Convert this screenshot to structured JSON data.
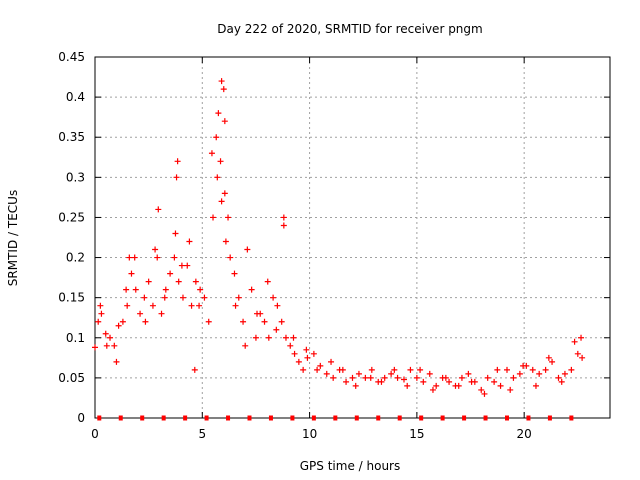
{
  "chart_data": {
    "type": "scatter",
    "title": "Day 222 of 2020, SRMTID for receiver pngm",
    "xlabel": "GPS time / hours",
    "ylabel": "SRMTID / TECUs",
    "xlim": [
      0,
      24
    ],
    "ylim": [
      0,
      0.45
    ],
    "x_ticks": [
      0,
      5,
      10,
      15,
      20
    ],
    "x_tick_labels": [
      "0",
      "5",
      "10",
      "15",
      "20"
    ],
    "y_ticks": [
      0,
      0.05,
      0.1,
      0.15,
      0.2,
      0.25,
      0.3,
      0.35,
      0.4,
      0.45
    ],
    "y_tick_labels": [
      "0",
      "0.05",
      "0.1",
      "0.15",
      "0.2",
      "0.25",
      "0.3",
      "0.35",
      "0.4",
      "0.45"
    ],
    "grid": true,
    "marker": "+",
    "color": "#ff0000",
    "x": [
      0.0,
      0.15,
      0.3,
      0.5,
      0.7,
      0.9,
      1.1,
      1.3,
      1.5,
      1.7,
      1.9,
      2.1,
      2.3,
      2.5,
      2.7,
      2.9,
      3.1,
      3.3,
      3.5,
      3.7,
      3.9,
      4.1,
      4.3,
      4.5,
      4.7,
      4.9,
      5.1,
      5.3,
      5.5,
      5.7,
      5.9,
      6.1,
      6.3,
      6.5,
      6.7,
      6.9,
      7.1,
      7.3,
      7.5,
      7.7,
      7.9,
      8.1,
      8.3,
      8.5,
      8.7,
      8.9,
      9.1,
      9.3,
      9.5,
      9.7,
      9.9,
      10.2,
      10.5,
      10.8,
      11.1,
      11.4,
      11.7,
      12.0,
      12.3,
      12.6,
      12.9,
      13.2,
      13.5,
      13.8,
      14.1,
      14.4,
      14.7,
      15.0,
      15.3,
      15.6,
      15.9,
      16.2,
      16.5,
      16.8,
      17.1,
      17.4,
      17.7,
      18.0,
      18.3,
      18.6,
      18.9,
      19.2,
      19.5,
      19.8,
      20.1,
      20.4,
      20.7,
      21.0,
      21.3,
      21.6,
      21.9,
      22.2,
      22.5,
      22.7,
      0.25,
      0.55,
      1.0,
      1.45,
      1.85,
      2.35,
      2.8,
      3.25,
      3.75,
      4.05,
      4.4,
      4.85,
      5.45,
      5.65,
      5.85,
      6.05,
      6.2,
      6.55,
      7.0,
      7.55,
      8.05,
      8.45,
      8.8,
      9.25,
      9.85,
      10.35,
      11.0,
      11.55,
      12.15,
      12.85,
      13.35,
      13.95,
      14.55,
      15.15,
      15.75,
      16.35,
      16.95,
      17.55,
      18.15,
      18.75,
      19.35,
      19.95,
      20.55,
      21.15,
      21.75,
      22.35,
      22.65,
      5.9,
      6.0,
      6.05,
      5.75,
      3.85,
      3.8,
      2.95,
      8.8,
      4.65,
      1.6
    ],
    "y": [
      0.088,
      0.12,
      0.13,
      0.105,
      0.1,
      0.09,
      0.115,
      0.12,
      0.14,
      0.18,
      0.16,
      0.13,
      0.15,
      0.17,
      0.14,
      0.2,
      0.13,
      0.16,
      0.18,
      0.2,
      0.17,
      0.15,
      0.19,
      0.14,
      0.17,
      0.16,
      0.15,
      0.12,
      0.25,
      0.3,
      0.27,
      0.22,
      0.2,
      0.18,
      0.15,
      0.12,
      0.21,
      0.16,
      0.1,
      0.13,
      0.12,
      0.1,
      0.15,
      0.14,
      0.12,
      0.1,
      0.09,
      0.08,
      0.07,
      0.06,
      0.075,
      0.08,
      0.065,
      0.055,
      0.05,
      0.06,
      0.045,
      0.05,
      0.055,
      0.05,
      0.06,
      0.045,
      0.05,
      0.055,
      0.05,
      0.048,
      0.06,
      0.05,
      0.045,
      0.055,
      0.04,
      0.05,
      0.045,
      0.04,
      0.05,
      0.055,
      0.045,
      0.035,
      0.05,
      0.045,
      0.04,
      0.06,
      0.05,
      0.055,
      0.065,
      0.06,
      0.055,
      0.06,
      0.07,
      0.05,
      0.055,
      0.06,
      0.08,
      0.075,
      0.14,
      0.09,
      0.07,
      0.16,
      0.2,
      0.12,
      0.21,
      0.15,
      0.23,
      0.19,
      0.22,
      0.14,
      0.33,
      0.35,
      0.32,
      0.28,
      0.25,
      0.14,
      0.09,
      0.13,
      0.17,
      0.11,
      0.24,
      0.1,
      0.085,
      0.06,
      0.07,
      0.06,
      0.04,
      0.05,
      0.045,
      0.06,
      0.04,
      0.06,
      0.035,
      0.05,
      0.04,
      0.045,
      0.03,
      0.06,
      0.035,
      0.065,
      0.04,
      0.075,
      0.045,
      0.095,
      0.1,
      0.42,
      0.41,
      0.37,
      0.38,
      0.32,
      0.3,
      0.26,
      0.25,
      0.06,
      0.2
    ],
    "baseline_markers_x": [
      0.2,
      1.2,
      2.2,
      3.2,
      4.2,
      5.2,
      6.2,
      7.2,
      8.2,
      9.2,
      10.2,
      11.2,
      12.2,
      13.2,
      14.2,
      15.2,
      16.2,
      17.2,
      18.2,
      19.2,
      20.2,
      21.2,
      22.2
    ]
  }
}
